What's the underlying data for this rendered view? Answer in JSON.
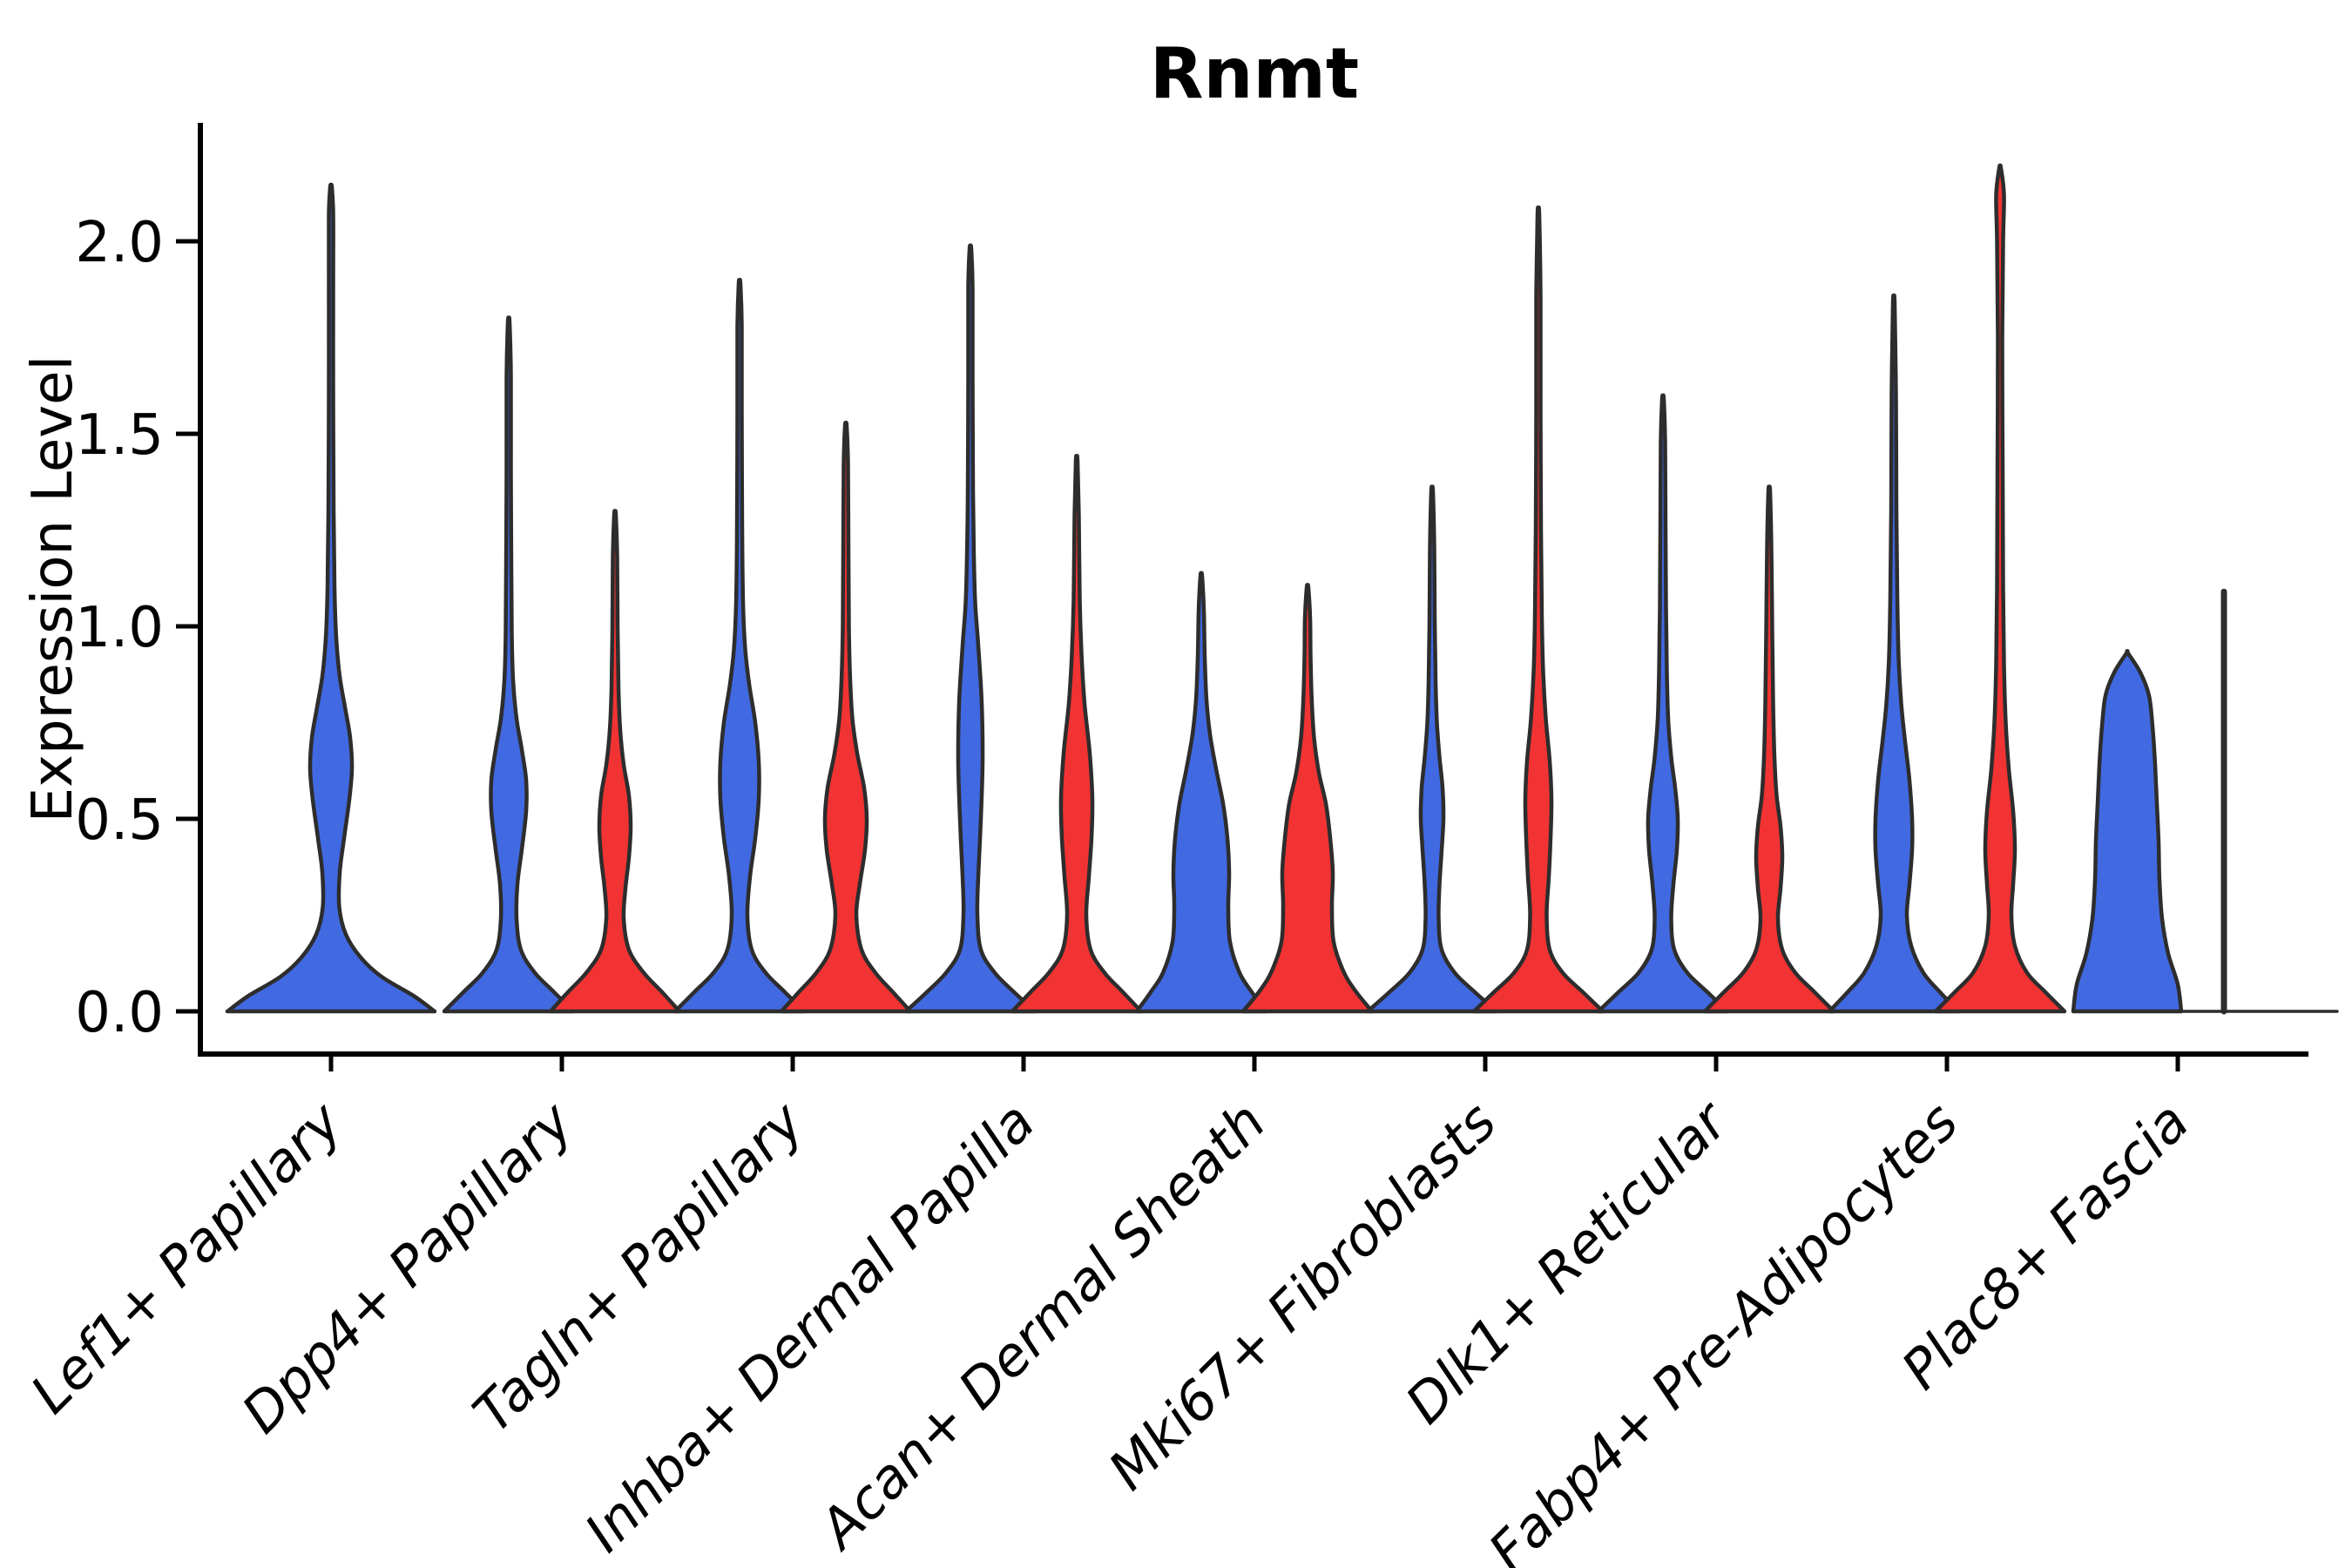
{
  "figure": {
    "title": "Rnmt",
    "background_color": "#ffffff"
  },
  "chart_data": {
    "type": "violin",
    "title": "Rnmt",
    "xlabel": "",
    "ylabel": "Expression Level",
    "ylim": [
      -0.11,
      2.31
    ],
    "yticks": [
      "0.0",
      "0.5",
      "1.0",
      "1.5",
      "2.0"
    ],
    "ytick_values": [
      0.0,
      0.5,
      1.0,
      1.5,
      2.0
    ],
    "grid": false,
    "legend": "none",
    "categories": [
      "Lef1+ Papillary",
      "Dpp4+ Papillary",
      "Tagln+ Papillary",
      "Inhba+ Dermal Papilla",
      "Acan+ Dermal Sheath",
      "Mki67+ Fibroblasts",
      "Dlk1+ Reticular",
      "Fabp4+ Pre-Adipocytes",
      "Plac8+ Fascia"
    ],
    "conditions": {
      "blue": {
        "color": "#4169E1"
      },
      "red": {
        "color": "#F23333"
      }
    },
    "outline_color": "#2d2d2d",
    "series": [
      {
        "name": "blue",
        "color": "#4169E1",
        "max_values": [
          2.14,
          1.79,
          1.89,
          1.98,
          1.13,
          1.35,
          1.59,
          1.84,
          0.93
        ]
      },
      {
        "name": "red",
        "color": "#F23333",
        "max_values": [
          null,
          1.29,
          1.52,
          1.43,
          1.1,
          2.07,
          1.35,
          2.19,
          1.09
        ]
      }
    ],
    "violins": [
      {
        "cat": 0,
        "cond": "blue",
        "dx": 0,
        "top": 2.14,
        "profile": [
          [
            0,
            119
          ],
          [
            0.04,
            95
          ],
          [
            0.09,
            58
          ],
          [
            0.14,
            34
          ],
          [
            0.2,
            17
          ],
          [
            0.27,
            9.5
          ],
          [
            0.36,
            10
          ],
          [
            0.45,
            15
          ],
          [
            0.55,
            21
          ],
          [
            0.63,
            24
          ],
          [
            0.71,
            22
          ],
          [
            0.79,
            16
          ],
          [
            0.87,
            10
          ],
          [
            0.97,
            6
          ],
          [
            1.1,
            4
          ],
          [
            1.3,
            3
          ],
          [
            1.6,
            2.5
          ],
          [
            1.9,
            2.5
          ],
          [
            2.07,
            2.5
          ],
          [
            2.14,
            1
          ]
        ]
      },
      {
        "cat": 1,
        "cond": "blue",
        "dx": -61,
        "top": 1.79,
        "profile": [
          [
            0,
            74
          ],
          [
            0.05,
            52
          ],
          [
            0.1,
            30
          ],
          [
            0.16,
            14
          ],
          [
            0.24,
            9
          ],
          [
            0.33,
            10
          ],
          [
            0.42,
            15
          ],
          [
            0.52,
            20
          ],
          [
            0.6,
            20
          ],
          [
            0.68,
            15
          ],
          [
            0.76,
            9
          ],
          [
            0.86,
            5
          ],
          [
            0.98,
            3.5
          ],
          [
            1.15,
            3
          ],
          [
            1.4,
            2.5
          ],
          [
            1.65,
            2.5
          ],
          [
            1.79,
            1
          ]
        ]
      },
      {
        "cat": 1,
        "cond": "red",
        "dx": 61,
        "top": 1.29,
        "profile": [
          [
            0,
            74
          ],
          [
            0.05,
            54
          ],
          [
            0.1,
            33
          ],
          [
            0.16,
            16
          ],
          [
            0.24,
            10
          ],
          [
            0.32,
            12
          ],
          [
            0.4,
            16
          ],
          [
            0.48,
            18
          ],
          [
            0.56,
            16
          ],
          [
            0.64,
            10
          ],
          [
            0.73,
            6
          ],
          [
            0.84,
            4
          ],
          [
            1.0,
            3
          ],
          [
            1.18,
            2.5
          ],
          [
            1.29,
            1
          ]
        ]
      },
      {
        "cat": 2,
        "cond": "blue",
        "dx": -61,
        "top": 1.89,
        "profile": [
          [
            0,
            74
          ],
          [
            0.05,
            52
          ],
          [
            0.1,
            30
          ],
          [
            0.16,
            14
          ],
          [
            0.25,
            9
          ],
          [
            0.35,
            12
          ],
          [
            0.45,
            18
          ],
          [
            0.55,
            22
          ],
          [
            0.65,
            22
          ],
          [
            0.75,
            18
          ],
          [
            0.85,
            11
          ],
          [
            0.94,
            6.5
          ],
          [
            1.06,
            4
          ],
          [
            1.25,
            3
          ],
          [
            1.55,
            2.5
          ],
          [
            1.78,
            2.5
          ],
          [
            1.89,
            1
          ]
        ]
      },
      {
        "cat": 2,
        "cond": "red",
        "dx": 61,
        "top": 1.52,
        "profile": [
          [
            0,
            74
          ],
          [
            0.05,
            54
          ],
          [
            0.1,
            34
          ],
          [
            0.16,
            18
          ],
          [
            0.25,
            12
          ],
          [
            0.33,
            16
          ],
          [
            0.42,
            22
          ],
          [
            0.5,
            24
          ],
          [
            0.58,
            21
          ],
          [
            0.67,
            13
          ],
          [
            0.76,
            7.5
          ],
          [
            0.86,
            5
          ],
          [
            1.0,
            3.5
          ],
          [
            1.2,
            3
          ],
          [
            1.42,
            2.5
          ],
          [
            1.52,
            1
          ]
        ]
      },
      {
        "cat": 3,
        "cond": "blue",
        "dx": -61,
        "top": 1.98,
        "profile": [
          [
            0,
            74
          ],
          [
            0.05,
            50
          ],
          [
            0.1,
            28
          ],
          [
            0.16,
            12
          ],
          [
            0.25,
            8
          ],
          [
            0.35,
            9
          ],
          [
            0.5,
            12
          ],
          [
            0.65,
            14
          ],
          [
            0.8,
            13
          ],
          [
            0.95,
            9
          ],
          [
            1.06,
            5.5
          ],
          [
            1.18,
            4
          ],
          [
            1.35,
            3
          ],
          [
            1.65,
            2.5
          ],
          [
            1.88,
            2.5
          ],
          [
            1.98,
            1
          ]
        ]
      },
      {
        "cat": 3,
        "cond": "red",
        "dx": 61,
        "top": 1.43,
        "profile": [
          [
            0,
            74
          ],
          [
            0.05,
            53
          ],
          [
            0.1,
            32
          ],
          [
            0.16,
            16
          ],
          [
            0.25,
            11
          ],
          [
            0.35,
            14
          ],
          [
            0.45,
            17
          ],
          [
            0.55,
            18
          ],
          [
            0.67,
            15
          ],
          [
            0.8,
            9
          ],
          [
            0.93,
            5.5
          ],
          [
            1.07,
            3.5
          ],
          [
            1.28,
            2.5
          ],
          [
            1.43,
            1
          ]
        ]
      },
      {
        "cat": 4,
        "cond": "blue",
        "dx": -61,
        "top": 1.13,
        "profile": [
          [
            0,
            74
          ],
          [
            0.05,
            58
          ],
          [
            0.1,
            44
          ],
          [
            0.18,
            33
          ],
          [
            0.27,
            31
          ],
          [
            0.36,
            32
          ],
          [
            0.45,
            30
          ],
          [
            0.54,
            25
          ],
          [
            0.63,
            17
          ],
          [
            0.72,
            10
          ],
          [
            0.81,
            6
          ],
          [
            0.92,
            4
          ],
          [
            1.04,
            3
          ],
          [
            1.13,
            1
          ]
        ]
      },
      {
        "cat": 4,
        "cond": "red",
        "dx": 61,
        "top": 1.1,
        "profile": [
          [
            0,
            74
          ],
          [
            0.05,
            56
          ],
          [
            0.1,
            42
          ],
          [
            0.18,
            30
          ],
          [
            0.27,
            28
          ],
          [
            0.36,
            29
          ],
          [
            0.45,
            26
          ],
          [
            0.54,
            21
          ],
          [
            0.62,
            13
          ],
          [
            0.71,
            7.5
          ],
          [
            0.8,
            5
          ],
          [
            0.92,
            3.5
          ],
          [
            1.02,
            3
          ],
          [
            1.1,
            1
          ]
        ]
      },
      {
        "cat": 5,
        "cond": "blue",
        "dx": -61,
        "top": 1.35,
        "profile": [
          [
            0,
            74
          ],
          [
            0.05,
            49
          ],
          [
            0.1,
            26
          ],
          [
            0.16,
            11
          ],
          [
            0.24,
            7.5
          ],
          [
            0.33,
            8.5
          ],
          [
            0.42,
            11
          ],
          [
            0.5,
            13
          ],
          [
            0.58,
            12
          ],
          [
            0.66,
            8.5
          ],
          [
            0.75,
            5.5
          ],
          [
            0.86,
            4
          ],
          [
            1.02,
            3
          ],
          [
            1.2,
            2.5
          ],
          [
            1.35,
            1
          ]
        ]
      },
      {
        "cat": 5,
        "cond": "red",
        "dx": 61,
        "top": 2.07,
        "profile": [
          [
            0,
            74
          ],
          [
            0.05,
            51
          ],
          [
            0.1,
            28
          ],
          [
            0.16,
            13
          ],
          [
            0.25,
            9.5
          ],
          [
            0.35,
            12
          ],
          [
            0.45,
            14
          ],
          [
            0.55,
            15
          ],
          [
            0.65,
            13
          ],
          [
            0.76,
            8.5
          ],
          [
            0.88,
            5.5
          ],
          [
            1.02,
            4
          ],
          [
            1.25,
            3
          ],
          [
            1.55,
            2.5
          ],
          [
            1.85,
            2.5
          ],
          [
            2.07,
            1
          ]
        ]
      },
      {
        "cat": 6,
        "cond": "blue",
        "dx": -61,
        "top": 1.59,
        "profile": [
          [
            0,
            74
          ],
          [
            0.05,
            51
          ],
          [
            0.1,
            28
          ],
          [
            0.16,
            13
          ],
          [
            0.24,
            9.5
          ],
          [
            0.33,
            12
          ],
          [
            0.42,
            16
          ],
          [
            0.5,
            17
          ],
          [
            0.58,
            14
          ],
          [
            0.66,
            9.5
          ],
          [
            0.76,
            6
          ],
          [
            0.88,
            4.5
          ],
          [
            1.05,
            3.5
          ],
          [
            1.25,
            3
          ],
          [
            1.48,
            2.5
          ],
          [
            1.59,
            1
          ]
        ]
      },
      {
        "cat": 6,
        "cond": "red",
        "dx": 61,
        "top": 1.35,
        "profile": [
          [
            0,
            74
          ],
          [
            0.05,
            52
          ],
          [
            0.1,
            30
          ],
          [
            0.16,
            15
          ],
          [
            0.24,
            10
          ],
          [
            0.32,
            13
          ],
          [
            0.4,
            15
          ],
          [
            0.48,
            13
          ],
          [
            0.56,
            8.5
          ],
          [
            0.66,
            6
          ],
          [
            0.8,
            4.5
          ],
          [
            0.98,
            3.5
          ],
          [
            1.2,
            2.5
          ],
          [
            1.35,
            1
          ]
        ]
      },
      {
        "cat": 7,
        "cond": "blue",
        "dx": -61,
        "top": 1.84,
        "profile": [
          [
            0,
            74
          ],
          [
            0.05,
            53
          ],
          [
            0.1,
            34
          ],
          [
            0.17,
            20
          ],
          [
            0.25,
            15
          ],
          [
            0.33,
            18
          ],
          [
            0.42,
            21
          ],
          [
            0.5,
            21
          ],
          [
            0.6,
            18
          ],
          [
            0.7,
            13
          ],
          [
            0.8,
            8.5
          ],
          [
            0.92,
            5.5
          ],
          [
            1.08,
            4
          ],
          [
            1.3,
            3
          ],
          [
            1.6,
            2.5
          ],
          [
            1.84,
            1
          ]
        ]
      },
      {
        "cat": 7,
        "cond": "red",
        "dx": 61,
        "top": 2.19,
        "profile": [
          [
            0,
            74
          ],
          [
            0.05,
            52
          ],
          [
            0.1,
            31
          ],
          [
            0.17,
            17
          ],
          [
            0.25,
            13
          ],
          [
            0.33,
            15
          ],
          [
            0.42,
            17
          ],
          [
            0.52,
            15
          ],
          [
            0.63,
            10
          ],
          [
            0.75,
            6.5
          ],
          [
            0.9,
            4.5
          ],
          [
            1.1,
            3.5
          ],
          [
            1.4,
            3
          ],
          [
            1.75,
            2.5
          ],
          [
            2.0,
            3.5
          ],
          [
            2.12,
            4.5
          ],
          [
            2.19,
            1
          ]
        ]
      },
      {
        "cat": 8,
        "cond": "blue",
        "dx": -58,
        "top": 0.93,
        "profile": [
          [
            0,
            62
          ],
          [
            0.07,
            58
          ],
          [
            0.15,
            47
          ],
          [
            0.24,
            40
          ],
          [
            0.34,
            37
          ],
          [
            0.44,
            36
          ],
          [
            0.54,
            34
          ],
          [
            0.64,
            32
          ],
          [
            0.74,
            29
          ],
          [
            0.82,
            25
          ],
          [
            0.88,
            15
          ],
          [
            0.93,
            1
          ]
        ]
      },
      {
        "cat": 8,
        "cond": "red",
        "dx": 53,
        "top": 1.09,
        "degenerate": true,
        "baseline_halfspan": 62,
        "profile": []
      }
    ]
  }
}
